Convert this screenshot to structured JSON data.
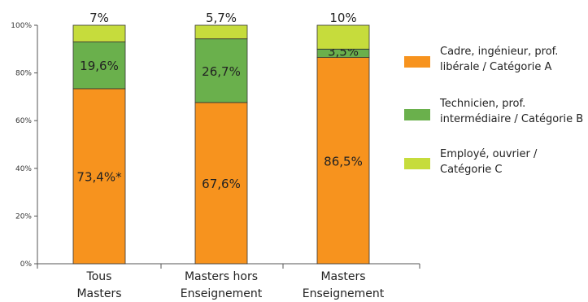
{
  "chart_data": {
    "type": "bar",
    "stacked": true,
    "categories": [
      [
        "Tous",
        "Masters"
      ],
      [
        "Masters hors",
        "Enseignement"
      ],
      [
        "Masters",
        "Enseignement"
      ]
    ],
    "series": [
      {
        "name": "Cadre, ingénieur, prof. libérale / Catégorie A",
        "color": "#f7931e",
        "values": [
          73.4,
          67.6,
          86.5
        ],
        "labels": [
          "73,4%*",
          "67,6%",
          "86,5%"
        ]
      },
      {
        "name": "Technicien, prof. intermédiaire / Catégorie B",
        "color": "#6ab04c",
        "values": [
          19.6,
          26.7,
          3.5
        ],
        "labels": [
          "19,6%",
          "26,7%",
          "3,5%"
        ]
      },
      {
        "name": "Employé, ouvrier / Catégorie C",
        "color": "#c6dc3c",
        "values": [
          7.0,
          5.7,
          10.0
        ],
        "labels": [
          "7%",
          "5,7%",
          "10%"
        ]
      }
    ],
    "y_ticks": [
      "0%",
      "20%",
      "40%",
      "60%",
      "80%",
      "100%"
    ],
    "ylim": [
      0,
      100
    ],
    "grid": false,
    "legend_position": "right",
    "legend_lines": [
      [
        "Cadre, ingénieur, prof.",
        "libérale / Catégorie A"
      ],
      [
        "Technicien, prof.",
        "intermédiaire / Catégorie B"
      ],
      [
        "Employé, ouvrier /",
        "Catégorie C"
      ]
    ]
  }
}
